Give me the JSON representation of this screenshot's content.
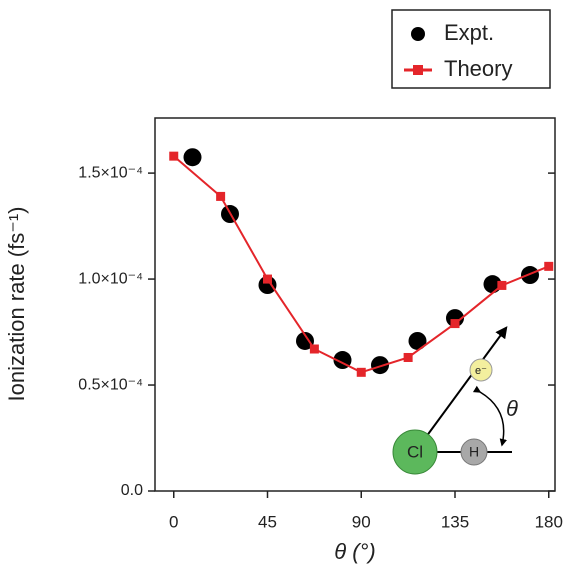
{
  "chart_data": {
    "type": "line",
    "xlabel": "θ (°)",
    "ylabel": "Ionization rate (fs⁻¹)",
    "xlim": [
      -9,
      183
    ],
    "xticks": [
      0,
      45,
      90,
      135,
      180
    ],
    "ylim": [
      0,
      0.000176
    ],
    "yticks": [
      {
        "value": 0,
        "label": "0.0"
      },
      {
        "value": 5e-05,
        "label": "0.5×10⁻⁴"
      },
      {
        "value": 0.0001,
        "label": "1.0×10⁻⁴"
      },
      {
        "value": 0.00015,
        "label": "1.5×10⁻⁴"
      }
    ],
    "series": [
      {
        "name": "Expt.",
        "color": "#000000",
        "marker": "circle",
        "line": false,
        "x": [
          9,
          27,
          45,
          63,
          81,
          99,
          117,
          135,
          153,
          171
        ],
        "values": [
          0.0001575,
          0.0001307,
          9.72e-05,
          7.08e-05,
          6.18e-05,
          5.94e-05,
          7.08e-05,
          8.16e-05,
          9.76e-05,
          0.0001019
        ]
      },
      {
        "name": "Theory",
        "color": "#e4252a",
        "marker": "square",
        "line": true,
        "x": [
          0,
          22.5,
          45,
          67.5,
          90,
          112.5,
          135,
          157.5,
          180
        ],
        "values": [
          0.000158,
          0.000139,
          0.0001,
          6.7e-05,
          5.6e-05,
          6.3e-05,
          7.9e-05,
          9.7e-05,
          0.000106
        ]
      }
    ],
    "annotations": [
      "Cl",
      "H",
      "e⁻",
      "θ"
    ]
  }
}
